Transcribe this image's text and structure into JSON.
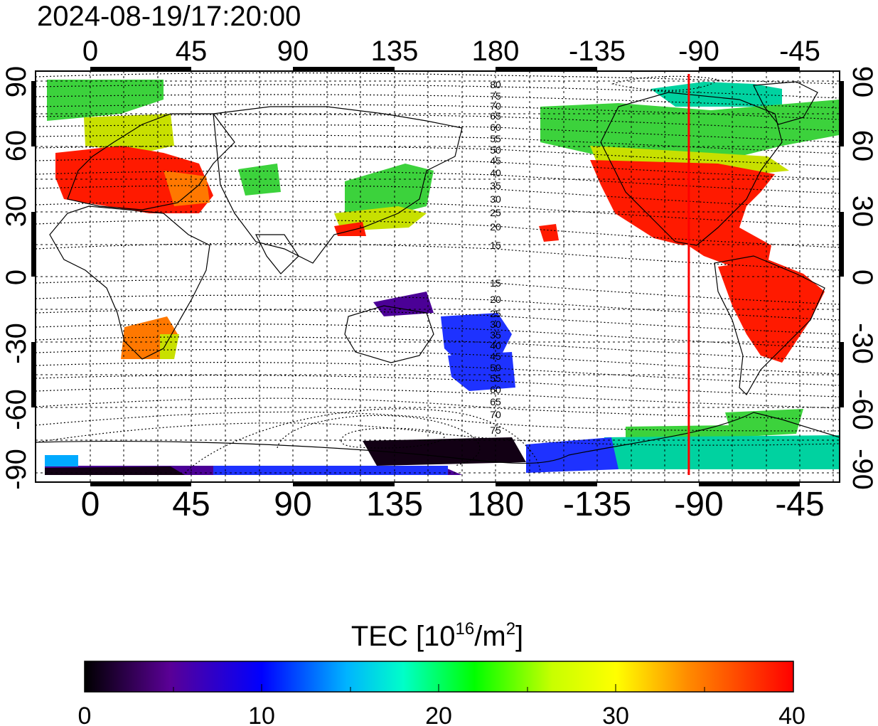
{
  "timestamp": "2024-08-19/17:20:00",
  "lon_ticks": [
    "0",
    "45",
    "90",
    "135",
    "180",
    "-135",
    "-90",
    "-45"
  ],
  "lat_ticks": [
    "90",
    "60",
    "30",
    "0",
    "-30",
    "-60",
    "-90"
  ],
  "contour_labels_north": [
    "80",
    "75",
    "70",
    "65",
    "60",
    "55",
    "50",
    "45",
    "40",
    "35",
    "30",
    "25",
    "20",
    "15"
  ],
  "contour_labels_south": [
    "15",
    "20",
    "25",
    "30",
    "35",
    "40",
    "45",
    "50",
    "55",
    "60",
    "65",
    "70",
    "75"
  ],
  "colorbar": {
    "title_prefix": "TEC  [10",
    "title_sup1": "16",
    "title_mid": "/m",
    "title_sup2": "2",
    "title_suffix": "]",
    "ticks": [
      "0",
      "10",
      "20",
      "30",
      "40"
    ],
    "min": 0,
    "max": 40,
    "colors": [
      "#000000",
      "#5a0096",
      "#0000ff",
      "#00b4ff",
      "#00ffc8",
      "#00ff00",
      "#c8ff00",
      "#ffff00",
      "#ff8c00",
      "#ff0000"
    ]
  },
  "map": {
    "lon_min": -22.5,
    "lon_max": 337.5,
    "lat_min": -94,
    "lat_max": 94,
    "marker_lon": 270,
    "marker_color": "#ff0000",
    "region_colors": [
      "#ff1a00",
      "#ff7800",
      "#c8e000",
      "#3cd23c",
      "#00d2a0",
      "#00aaff",
      "#1e32ff",
      "#4b0096",
      "#120014"
    ]
  }
}
